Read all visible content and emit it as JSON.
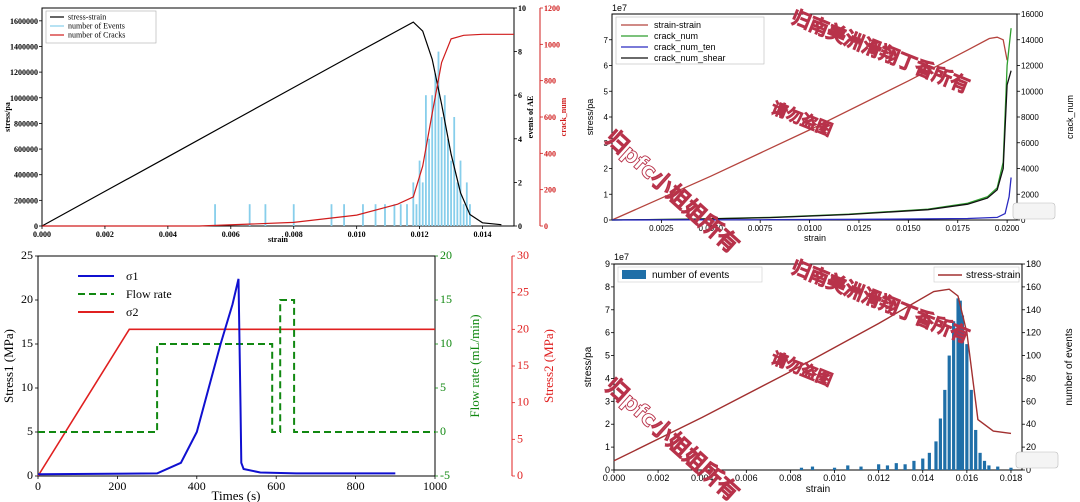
{
  "chart_data": [
    {
      "type": "line",
      "id": "tl",
      "title": "",
      "xlabel": "strain",
      "ylabel": "stress/pa",
      "y2label": "events of AE",
      "y3label": "crack_num",
      "xlim": [
        0,
        0.015
      ],
      "ylim": [
        0,
        1700000
      ],
      "y2lim": [
        0,
        10
      ],
      "y3lim": [
        0,
        1200
      ],
      "xticks": [
        "0.000",
        "0.002",
        "0.004",
        "0.006",
        "0.008",
        "0.010",
        "0.012",
        "0.014"
      ],
      "yticks": [
        "0",
        "200000",
        "400000",
        "600000",
        "800000",
        "1000000",
        "1200000",
        "1400000",
        "1600000"
      ],
      "y2ticks": [
        "0",
        "2",
        "4",
        "6",
        "8",
        "10"
      ],
      "y3ticks": [
        "0",
        "200",
        "400",
        "600",
        "800",
        "1000",
        "1200"
      ],
      "legend": [
        "stress-strain",
        "number of Events",
        "number of Cracks"
      ],
      "colors": {
        "stress": "#000000",
        "events": "#87ceeb",
        "cracks": "#d01c1c"
      },
      "series": [
        {
          "name": "stress-strain",
          "x": [
            0,
            0.002,
            0.004,
            0.006,
            0.008,
            0.01,
            0.0112,
            0.0118,
            0.0121,
            0.0124,
            0.0127,
            0.013,
            0.0133,
            0.0136,
            0.014,
            0.0146
          ],
          "y": [
            0,
            270000,
            540000,
            810000,
            1080000,
            1350000,
            1510000,
            1590000,
            1520000,
            1300000,
            950000,
            560000,
            260000,
            90000,
            25000,
            10000
          ]
        },
        {
          "name": "number of Cracks",
          "x": [
            0,
            0.005,
            0.008,
            0.01,
            0.0113,
            0.0118,
            0.0121,
            0.0124,
            0.0127,
            0.013,
            0.0134,
            0.014,
            0.015
          ],
          "y": [
            0,
            0,
            20,
            60,
            120,
            160,
            330,
            620,
            900,
            1030,
            1050,
            1055,
            1055
          ]
        }
      ],
      "events": [
        [
          0.0055,
          1
        ],
        [
          0.0066,
          1
        ],
        [
          0.0071,
          1
        ],
        [
          0.008,
          1
        ],
        [
          0.0092,
          1
        ],
        [
          0.0096,
          1
        ],
        [
          0.0102,
          1
        ],
        [
          0.0106,
          1
        ],
        [
          0.0109,
          1
        ],
        [
          0.0112,
          1
        ],
        [
          0.0114,
          1
        ],
        [
          0.0116,
          1
        ],
        [
          0.0118,
          2
        ],
        [
          0.0119,
          1
        ],
        [
          0.012,
          3
        ],
        [
          0.0121,
          2
        ],
        [
          0.0122,
          6
        ],
        [
          0.0123,
          4
        ],
        [
          0.0124,
          6
        ],
        [
          0.0125,
          7
        ],
        [
          0.0126,
          8
        ],
        [
          0.0127,
          5
        ],
        [
          0.0128,
          6
        ],
        [
          0.0129,
          4
        ],
        [
          0.013,
          3
        ],
        [
          0.0131,
          5
        ],
        [
          0.0132,
          2
        ],
        [
          0.0133,
          3
        ],
        [
          0.0134,
          1
        ],
        [
          0.0135,
          2
        ],
        [
          0.0136,
          1
        ]
      ]
    },
    {
      "type": "line",
      "id": "tr",
      "xlabel": "strain",
      "ylabel": "stress/pa",
      "y2label": "crack_num",
      "yexp": "1e7",
      "xlim": [
        0.0,
        0.0205
      ],
      "ylim": [
        0,
        8
      ],
      "y2lim": [
        0,
        16000
      ],
      "xticks": [
        "0.0025",
        "0.0050",
        "0.0075",
        "0.0100",
        "0.0125",
        "0.0150",
        "0.0175",
        "0.0200"
      ],
      "yticks": [
        "0",
        "1",
        "2",
        "3",
        "4",
        "5",
        "6",
        "7"
      ],
      "y2ticks": [
        "0",
        "2000",
        "4000",
        "6000",
        "8000",
        "10000",
        "12000",
        "14000",
        "16000"
      ],
      "legend": [
        "strain-strain",
        "crack_num",
        "crack_num_ten",
        "crack_num_shear"
      ],
      "colors": {
        "stress": "#b5443e",
        "crack": "#2e9e2e",
        "ten": "#2a2ac0",
        "shear": "#111111"
      },
      "series": [
        {
          "name": "strain-strain",
          "x": [
            0,
            0.005,
            0.01,
            0.015,
            0.018,
            0.0191,
            0.0195,
            0.0198,
            0.02
          ],
          "y": [
            0,
            1.7,
            3.5,
            5.4,
            6.6,
            7.05,
            7.1,
            7.0,
            6.2
          ]
        },
        {
          "name": "crack_num",
          "x": [
            0,
            0.004,
            0.008,
            0.012,
            0.016,
            0.018,
            0.019,
            0.0195,
            0.0198,
            0.02,
            0.0202
          ],
          "y": [
            0,
            60,
            200,
            450,
            850,
            1300,
            1800,
            2500,
            4500,
            12000,
            14900
          ]
        },
        {
          "name": "crack_num_ten",
          "x": [
            0,
            0.008,
            0.014,
            0.018,
            0.0195,
            0.0199,
            0.0201,
            0.0202
          ],
          "y": [
            0,
            20,
            60,
            120,
            200,
            500,
            1800,
            3300
          ]
        },
        {
          "name": "crack_num_shear",
          "x": [
            0,
            0.004,
            0.008,
            0.012,
            0.016,
            0.018,
            0.019,
            0.0195,
            0.0198,
            0.02,
            0.0202
          ],
          "y": [
            0,
            55,
            190,
            430,
            800,
            1230,
            1700,
            2350,
            4000,
            10500,
            11600
          ]
        }
      ]
    },
    {
      "type": "line",
      "id": "bl",
      "xlabel": "Times (s)",
      "ylabel": "Stress1 (MPa)",
      "y2label": "Flow rate (mL/min)",
      "y3label": "Stress2 (MPa)",
      "xlim": [
        0,
        1000
      ],
      "ylim": [
        0,
        25
      ],
      "y2lim": [
        -5,
        20
      ],
      "y3lim": [
        0,
        30
      ],
      "xticks": [
        "0",
        "200",
        "400",
        "600",
        "800",
        "1000"
      ],
      "yticks": [
        "0",
        "5",
        "10",
        "15",
        "20",
        "25"
      ],
      "y2ticks": [
        "-5",
        "0",
        "5",
        "10",
        "15",
        "20"
      ],
      "y3ticks": [
        "0",
        "5",
        "10",
        "15",
        "20",
        "25",
        "30"
      ],
      "legend": [
        "σ1",
        "Flow rate",
        "σ2"
      ],
      "colors": {
        "s1": "#1010d0",
        "flow": "#118811",
        "s2": "#e02020"
      },
      "series": [
        {
          "name": "σ1",
          "x": [
            0,
            300,
            360,
            400,
            430,
            460,
            490,
            505,
            510,
            512,
            518,
            560,
            650,
            900
          ],
          "y": [
            0.2,
            0.3,
            1.5,
            5,
            10,
            15,
            19.5,
            22.4,
            8,
            1.5,
            0.8,
            0.4,
            0.3,
            0.3
          ]
        },
        {
          "name": "Flow rate",
          "x": [
            0,
            300,
            300,
            590,
            590,
            610,
            610,
            645,
            645,
            1000
          ],
          "y": [
            0,
            0,
            10,
            10,
            0,
            0,
            15,
            15,
            0,
            0
          ]
        },
        {
          "name": "σ2",
          "x": [
            0,
            230,
            1000
          ],
          "y": [
            0,
            20,
            20
          ]
        }
      ]
    },
    {
      "type": "bar",
      "id": "br",
      "xlabel": "strain",
      "ylabel": "stress/pa",
      "y2label": "number of events",
      "yexp": "1e7",
      "xlim": [
        0.0,
        0.0185
      ],
      "ylim": [
        0,
        9
      ],
      "y2lim": [
        0,
        180
      ],
      "xticks": [
        "0.000",
        "0.002",
        "0.004",
        "0.006",
        "0.008",
        "0.010",
        "0.012",
        "0.014",
        "0.016",
        "0.018"
      ],
      "yticks": [
        "0",
        "1",
        "2",
        "3",
        "4",
        "5",
        "6",
        "7",
        "8",
        "9"
      ],
      "y2ticks": [
        "0",
        "20",
        "40",
        "60",
        "80",
        "100",
        "120",
        "140",
        "160",
        "180"
      ],
      "legend": [
        "number of events",
        "stress-strain"
      ],
      "colors": {
        "bars": "#1f6fa8",
        "stress": "#a23030"
      },
      "series": [
        {
          "name": "stress-strain",
          "x": [
            0,
            0.004,
            0.008,
            0.012,
            0.0145,
            0.0152,
            0.0156,
            0.016,
            0.0165,
            0.0172,
            0.018
          ],
          "y": [
            0.4,
            2.3,
            4.3,
            6.4,
            7.8,
            7.9,
            7.6,
            6.0,
            2.2,
            1.7,
            1.6
          ]
        }
      ],
      "events": [
        [
          0.0085,
          2
        ],
        [
          0.009,
          3
        ],
        [
          0.01,
          2
        ],
        [
          0.0106,
          4
        ],
        [
          0.0112,
          3
        ],
        [
          0.012,
          5
        ],
        [
          0.0124,
          4
        ],
        [
          0.0128,
          6
        ],
        [
          0.0132,
          5
        ],
        [
          0.0136,
          8
        ],
        [
          0.014,
          10
        ],
        [
          0.0143,
          15
        ],
        [
          0.0146,
          25
        ],
        [
          0.0148,
          45
        ],
        [
          0.015,
          70
        ],
        [
          0.0152,
          100
        ],
        [
          0.0154,
          130
        ],
        [
          0.0156,
          150
        ],
        [
          0.0157,
          148
        ],
        [
          0.0158,
          135
        ],
        [
          0.016,
          110
        ],
        [
          0.0162,
          70
        ],
        [
          0.0164,
          35
        ],
        [
          0.0166,
          15
        ],
        [
          0.0168,
          8
        ],
        [
          0.017,
          4
        ],
        [
          0.0174,
          3
        ],
        [
          0.018,
          2
        ]
      ]
    }
  ],
  "watermarks": {
    "tr_1": "归南美洲滑翔丁香所有",
    "tr_2": "请勿盗图",
    "tr_3": "归pfc小姐姐所有",
    "br_1": "归南美洲滑翔丁香所有",
    "br_2": "请勿盗图",
    "br_3": "归pfc小姐姐所有"
  }
}
